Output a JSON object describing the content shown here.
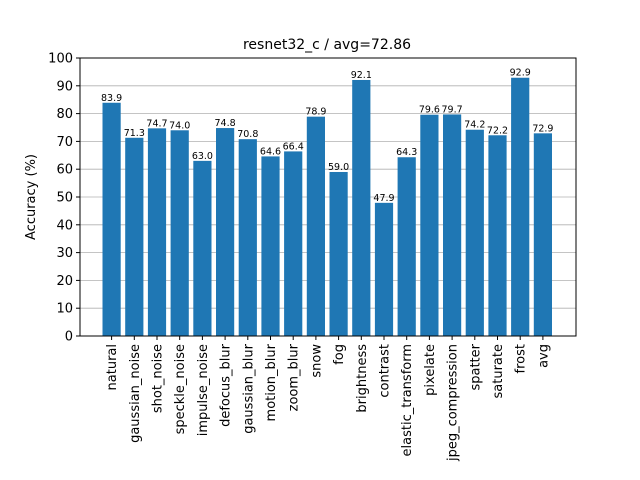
{
  "chart_data": {
    "type": "bar",
    "title": "resnet32_c / avg=72.86",
    "xlabel": "",
    "ylabel": "Accuracy (%)",
    "ylim": [
      0,
      100
    ],
    "yticks": [
      0,
      10,
      20,
      30,
      40,
      50,
      60,
      70,
      80,
      90,
      100
    ],
    "grid": "y",
    "color": "#1f77b4",
    "categories": [
      "natural",
      "gaussian_noise",
      "shot_noise",
      "speckle_noise",
      "impulse_noise",
      "defocus_blur",
      "gaussian_blur",
      "motion_blur",
      "zoom_blur",
      "snow",
      "fog",
      "brightness",
      "contrast",
      "elastic_transform",
      "pixelate",
      "jpeg_compression",
      "spatter",
      "saturate",
      "frost",
      "avg"
    ],
    "values": [
      83.9,
      71.3,
      74.7,
      74.0,
      63.0,
      74.8,
      70.8,
      64.6,
      66.4,
      78.9,
      59.0,
      92.1,
      47.9,
      64.3,
      79.6,
      79.7,
      74.2,
      72.2,
      92.9,
      72.9
    ],
    "value_labels": [
      "83.9",
      "71.3",
      "74.7",
      "74.0",
      "63.0",
      "74.8",
      "70.8",
      "64.6",
      "66.4",
      "78.9",
      "59.0",
      "92.1",
      "47.9",
      "64.3",
      "79.6",
      "79.7",
      "74.2",
      "72.2",
      "92.9",
      "72.9"
    ]
  }
}
